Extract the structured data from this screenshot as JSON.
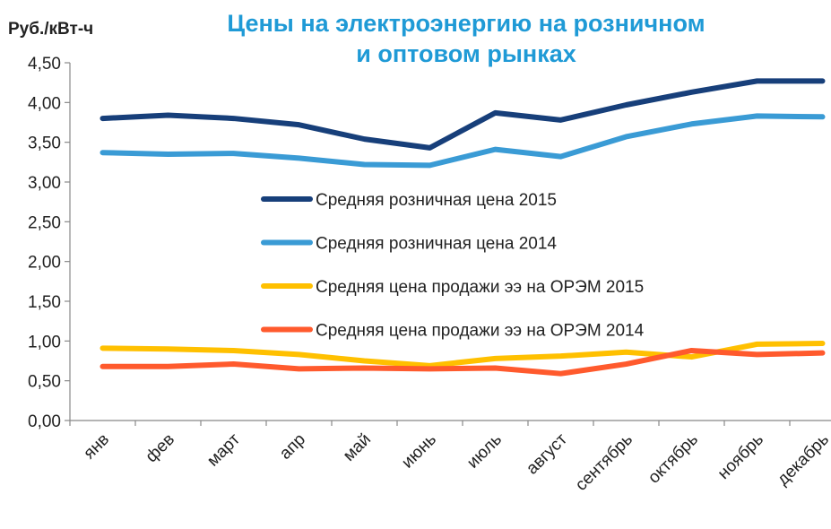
{
  "chart_data": {
    "type": "line",
    "title": "Цены на электроэнергию на розничном и оптовом рынках",
    "y_label": "Руб./кВт-ч",
    "categories": [
      "янв",
      "фев",
      "март",
      "апр",
      "май",
      "июнь",
      "июль",
      "август",
      "сентябрь",
      "октябрь",
      "ноябрь",
      "декабрь"
    ],
    "series": [
      {
        "name": "Средняя розничная цена 2015",
        "color": "#173f7a",
        "values": [
          3.8,
          3.84,
          3.8,
          3.72,
          3.54,
          3.43,
          3.87,
          3.78,
          3.97,
          4.13,
          4.27,
          4.27
        ]
      },
      {
        "name": "Средняя розничная цена 2014",
        "color": "#3a9bd5",
        "values": [
          3.37,
          3.35,
          3.36,
          3.3,
          3.22,
          3.21,
          3.41,
          3.32,
          3.57,
          3.73,
          3.83,
          3.82
        ]
      },
      {
        "name": "Средняя цена продажи ээ на ОРЭМ 2015",
        "color": "#ffc000",
        "values": [
          0.91,
          0.9,
          0.88,
          0.83,
          0.75,
          0.69,
          0.78,
          0.81,
          0.86,
          0.8,
          0.96,
          0.97
        ]
      },
      {
        "name": "Средняя цена продажи ээ на ОРЭМ  2014",
        "color": "#ff5a2d",
        "values": [
          0.68,
          0.68,
          0.71,
          0.65,
          0.66,
          0.65,
          0.66,
          0.59,
          0.71,
          0.88,
          0.83,
          0.85
        ]
      }
    ],
    "ylim": [
      0,
      4.5
    ],
    "yticks": [
      {
        "value": 0,
        "label": "0,00"
      },
      {
        "value": 0.5,
        "label": "0,50"
      },
      {
        "value": 1,
        "label": "1,00"
      },
      {
        "value": 1.5,
        "label": "1,50"
      },
      {
        "value": 2,
        "label": "2,00"
      },
      {
        "value": 2.5,
        "label": "2,50"
      },
      {
        "value": 3,
        "label": "3,00"
      },
      {
        "value": 3.5,
        "label": "3,50"
      },
      {
        "value": 4,
        "label": "4,00"
      },
      {
        "value": 4.5,
        "label": "4,50"
      }
    ],
    "grid": false,
    "legend": "center"
  }
}
